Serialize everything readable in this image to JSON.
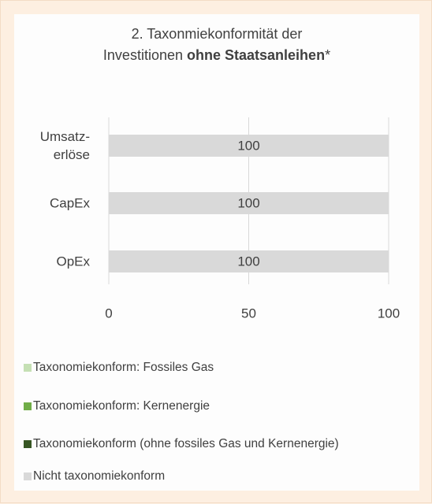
{
  "chart_data": {
    "type": "stacked-bar-horizontal",
    "title": {
      "line1": "2. Taxonmiekonformität der",
      "start": "Investitionen",
      "bold": "ohne Staatsanleihen",
      "end": "*"
    },
    "categories": [
      "Umsatz-\nerlöse",
      "CapEx",
      "OpEx"
    ],
    "series": [
      {
        "name": "Taxonomiekonform: Fossiles Gas",
        "color": "#c5e0b4",
        "values": [
          0,
          0,
          0
        ]
      },
      {
        "name": "Taxonomiekonform: Kernenergie",
        "color": "#70ad47",
        "values": [
          0,
          0,
          0
        ]
      },
      {
        "name": "Taxonomiekonform (ohne fossiles Gas und Kernenergie)",
        "color": "#375623",
        "values": [
          0,
          0,
          0
        ]
      },
      {
        "name": "Nicht taxonomiekonform",
        "color": "#d9d9d9",
        "values": [
          100,
          100,
          100
        ]
      }
    ],
    "xlim": [
      0,
      100
    ],
    "xticks": [
      0,
      50,
      100
    ],
    "grid": true
  }
}
